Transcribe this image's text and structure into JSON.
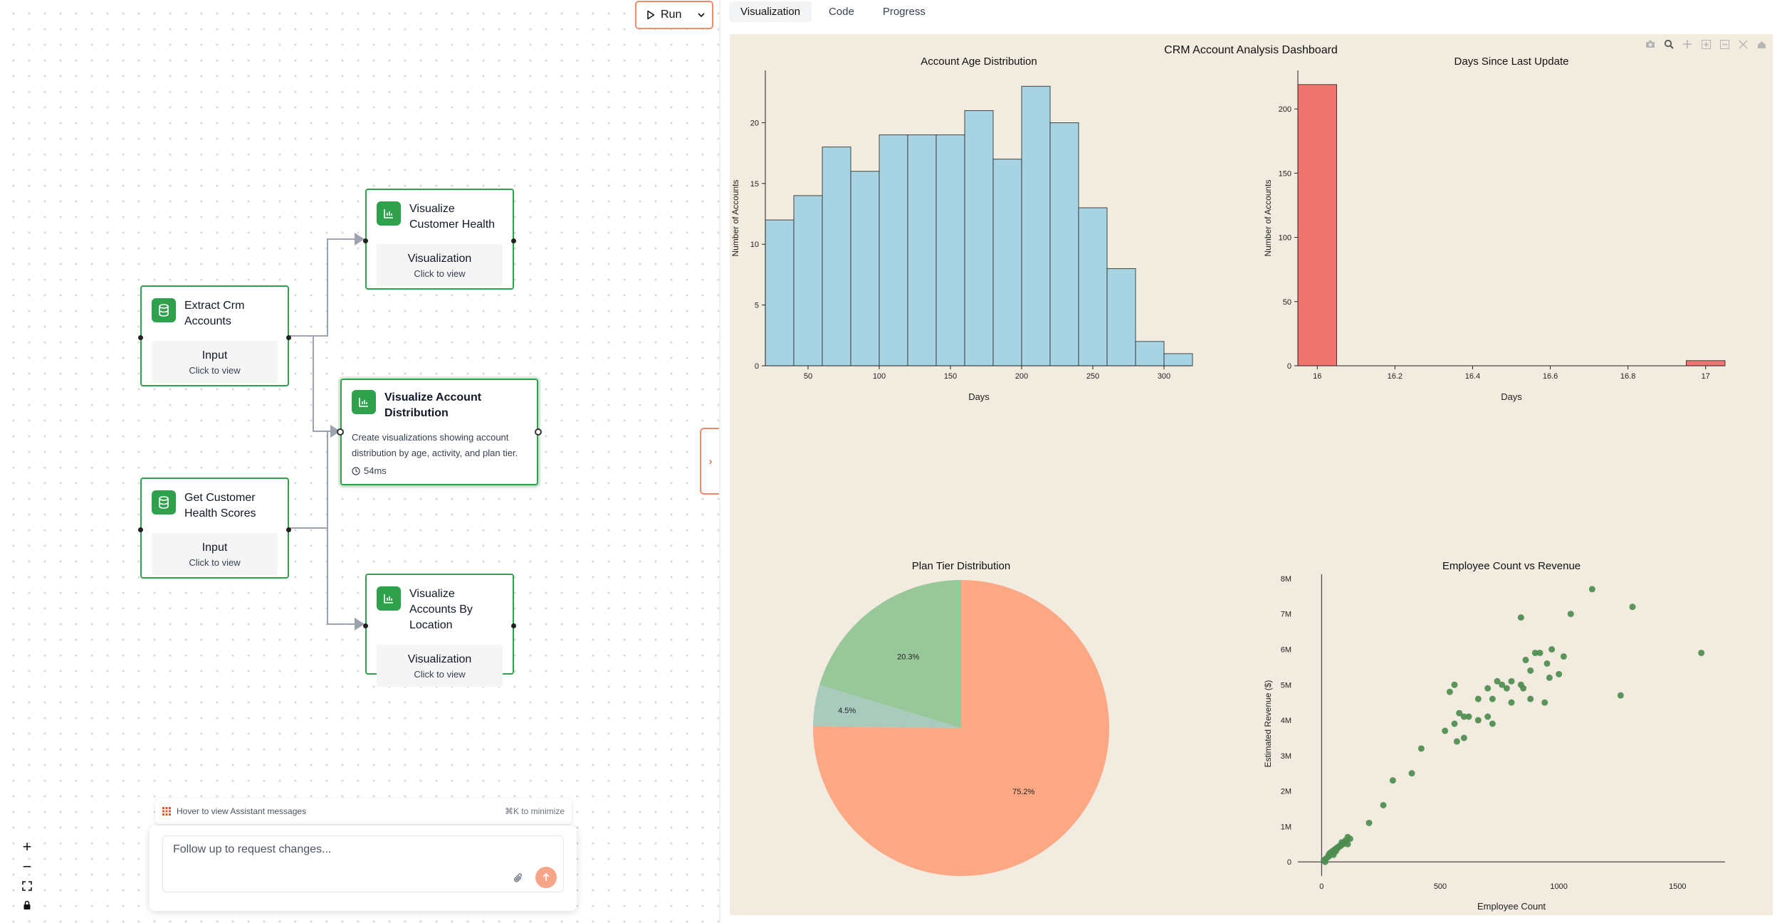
{
  "toolbar": {
    "run_label": "Run"
  },
  "nodes": {
    "extract": {
      "title": "Extract Crm Accounts",
      "sub_title": "Input",
      "sub_hint": "Click to view"
    },
    "health_scores": {
      "title": "Get Customer Health Scores",
      "sub_title": "Input",
      "sub_hint": "Click to view"
    },
    "vis_health": {
      "title": "Visualize Customer Health",
      "sub_title": "Visualization",
      "sub_hint": "Click to view"
    },
    "vis_distribution": {
      "title": "Visualize Account Distribution",
      "description": "Create visualizations showing account distribution by age, activity, and plan tier.",
      "time": "54ms"
    },
    "vis_location": {
      "title": "Visualize Accounts By Location",
      "sub_title": "Visualization",
      "sub_hint": "Click to view"
    }
  },
  "chat": {
    "hover_label": "Hover to view Assistant messages",
    "minimize_hint": "⌘K to minimize",
    "placeholder": "Follow up to request changes..."
  },
  "tabs": [
    "Visualization",
    "Code",
    "Progress"
  ],
  "colors": {
    "accent": "#2fa14d",
    "run_border": "#f08a6a",
    "send": "#f7a588",
    "panel_bg": "#f2ebe0"
  },
  "dashboard_title": "CRM Account Analysis Dashboard",
  "chart_data": [
    {
      "type": "bar",
      "title": "Account Age Distribution",
      "xlabel": "Days",
      "ylabel": "Number of Accounts",
      "bin_edges": [
        20,
        40,
        60,
        80,
        100,
        120,
        140,
        160,
        180,
        200,
        220,
        240,
        260,
        280,
        300,
        320
      ],
      "values": [
        12,
        14,
        18,
        16,
        19,
        19,
        19,
        21,
        17,
        23,
        20,
        13,
        8,
        2,
        1
      ],
      "xticks": [
        50,
        100,
        150,
        200,
        250,
        300
      ],
      "yticks": [
        0,
        5,
        10,
        15,
        20
      ],
      "xlim": [
        20,
        320
      ],
      "ylim": [
        0,
        24.3
      ],
      "color": "#a7d3e3"
    },
    {
      "type": "bar",
      "title": "Days Since Last Update",
      "xlabel": "Days",
      "ylabel": "Number of Accounts",
      "bin_edges": [
        15.95,
        16.05,
        16.95,
        17.05
      ],
      "values": [
        219,
        0,
        4
      ],
      "xticks": [
        16,
        16.2,
        16.4,
        16.6,
        16.8,
        17
      ],
      "yticks": [
        0,
        50,
        100,
        150,
        200
      ],
      "xlim": [
        15.95,
        17.05
      ],
      "ylim": [
        0,
        230
      ],
      "color": "#f07470"
    },
    {
      "type": "pie",
      "title": "Plan Tier Distribution",
      "labels": [
        "75.2%",
        "4.5%",
        "20.3%"
      ],
      "values": [
        75.2,
        4.5,
        20.3
      ],
      "colors": [
        "#fca884",
        "#a8cbbd",
        "#98c79a"
      ]
    },
    {
      "type": "scatter",
      "title": "Employee Count vs Revenue",
      "xlabel": "Employee Count",
      "ylabel": "Estimated Revenue ($)",
      "xticks": [
        0,
        500,
        1000,
        1500
      ],
      "yticks": [
        "0",
        "1M",
        "2M",
        "3M",
        "4M",
        "5M",
        "6M",
        "7M",
        "8M"
      ],
      "xlim": [
        -100,
        1700
      ],
      "ylim": [
        -0.4,
        8.2
      ],
      "color": "#4d8c4f",
      "x": [
        1140,
        1310,
        1260,
        1600,
        1050,
        840,
        900,
        950,
        970,
        1020,
        1000,
        860,
        800,
        760,
        700,
        740,
        660,
        560,
        540,
        560,
        920,
        880,
        960,
        840,
        780,
        940,
        850,
        880,
        800,
        720,
        620,
        580,
        700,
        660,
        720,
        600,
        570,
        520,
        600,
        420,
        380,
        300,
        260,
        200,
        10,
        30,
        40,
        60,
        80,
        100,
        50,
        20,
        60,
        90,
        120,
        110,
        70,
        30,
        15,
        45,
        75,
        100,
        85,
        35,
        55,
        65,
        110
      ],
      "y": [
        7.7,
        7.2,
        4.7,
        5.9,
        7.0,
        6.9,
        5.9,
        5.6,
        6.0,
        5.8,
        5.3,
        5.7,
        5.1,
        5.0,
        4.9,
        5.1,
        4.6,
        5.0,
        4.8,
        3.9,
        5.9,
        5.4,
        5.2,
        5.0,
        4.9,
        4.5,
        4.9,
        4.6,
        4.5,
        4.6,
        4.1,
        4.2,
        4.1,
        4.0,
        3.9,
        3.5,
        3.4,
        3.7,
        4.1,
        3.2,
        2.5,
        2.3,
        1.6,
        1.1,
        0.05,
        0.15,
        0.25,
        0.35,
        0.45,
        0.55,
        0.2,
        0.1,
        0.3,
        0.5,
        0.65,
        0.7,
        0.4,
        0.2,
        0.0,
        0.3,
        0.45,
        0.6,
        0.55,
        0.25,
        0.35,
        0.4,
        0.5
      ]
    }
  ]
}
